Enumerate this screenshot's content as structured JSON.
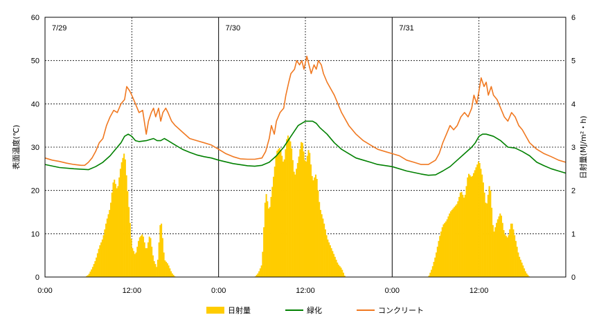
{
  "chart_data": {
    "type": "line",
    "title": "",
    "x_ticks": [
      "0:00",
      "12:00",
      "0:00",
      "12:00",
      "0:00",
      "12:00"
    ],
    "day_labels": [
      "7/29",
      "7/30",
      "7/31"
    ],
    "ylabel_left": "表面温度(℃)",
    "ylabel_right": "日射量(MJ/m²・h)",
    "ylim_left": [
      0,
      60
    ],
    "ylim_right": [
      0,
      6
    ],
    "yticks_left": [
      "0",
      "10",
      "20",
      "30",
      "40",
      "50",
      "60"
    ],
    "yticks_right": [
      "0",
      "1",
      "2",
      "3",
      "4",
      "5",
      "6"
    ],
    "grid": "dotted horizontal at every 10 ℃, dotted vertical at 12:00, solid vertical at 0:00",
    "legend_position": "bottom",
    "x_unit": "hours from 7/29 0:00",
    "colors": {
      "solar": "#FFCC00",
      "greening": "#008000",
      "concrete": "#F07820"
    },
    "series": [
      {
        "name": "日射量",
        "kind": "bar",
        "axis": "right",
        "points": [
          [
            0,
            0
          ],
          [
            5.5,
            0
          ],
          [
            6,
            0.05
          ],
          [
            6.5,
            0.2
          ],
          [
            7,
            0.4
          ],
          [
            7.5,
            0.7
          ],
          [
            8,
            0.9
          ],
          [
            8.5,
            1.3
          ],
          [
            9,
            1.6
          ],
          [
            9.5,
            2.3
          ],
          [
            10,
            2.0
          ],
          [
            10.5,
            2.6
          ],
          [
            11,
            2.9
          ],
          [
            11.5,
            1.8
          ],
          [
            12,
            0.7
          ],
          [
            12.5,
            0.5
          ],
          [
            13,
            0.9
          ],
          [
            13.5,
            1.0
          ],
          [
            14,
            0.6
          ],
          [
            14.5,
            1.0
          ],
          [
            15,
            0.4
          ],
          [
            15.5,
            0.2
          ],
          [
            16,
            1.4
          ],
          [
            16.5,
            0.4
          ],
          [
            17,
            0.3
          ],
          [
            17.5,
            0.1
          ],
          [
            18,
            0
          ],
          [
            24,
            0
          ],
          [
            29,
            0
          ],
          [
            29.5,
            0.1
          ],
          [
            30,
            0.3
          ],
          [
            30.5,
            2.0
          ],
          [
            31,
            1.5
          ],
          [
            31.5,
            2.2
          ],
          [
            32,
            2.9
          ],
          [
            32.5,
            3.0
          ],
          [
            33,
            2.6
          ],
          [
            33.5,
            3.3
          ],
          [
            34,
            3.1
          ],
          [
            34.5,
            2.3
          ],
          [
            35,
            2.7
          ],
          [
            35.5,
            3.2
          ],
          [
            36,
            2.6
          ],
          [
            36.5,
            3.0
          ],
          [
            37,
            2.2
          ],
          [
            37.5,
            2.4
          ],
          [
            38,
            1.6
          ],
          [
            38.5,
            1.3
          ],
          [
            39,
            0.9
          ],
          [
            39.5,
            0.7
          ],
          [
            40,
            0.5
          ],
          [
            40.5,
            0.3
          ],
          [
            41,
            0.2
          ],
          [
            41.5,
            0
          ],
          [
            48,
            0
          ],
          [
            53,
            0
          ],
          [
            53.5,
            0.2
          ],
          [
            54,
            0.5
          ],
          [
            54.5,
            0.9
          ],
          [
            55,
            1.2
          ],
          [
            55.5,
            1.3
          ],
          [
            56,
            1.5
          ],
          [
            56.5,
            1.6
          ],
          [
            57,
            1.7
          ],
          [
            57.5,
            2.0
          ],
          [
            58,
            1.8
          ],
          [
            58.5,
            2.4
          ],
          [
            59,
            2.3
          ],
          [
            59.5,
            2.5
          ],
          [
            60,
            2.7
          ],
          [
            60.5,
            2.3
          ],
          [
            61,
            1.6
          ],
          [
            61.5,
            2.2
          ],
          [
            62,
            1.0
          ],
          [
            62.5,
            1.3
          ],
          [
            63,
            1.5
          ],
          [
            63.5,
            1.0
          ],
          [
            64,
            0.9
          ],
          [
            64.5,
            1.3
          ],
          [
            65,
            0.9
          ],
          [
            65.5,
            0.5
          ],
          [
            66,
            0.3
          ],
          [
            66.5,
            0.1
          ],
          [
            67,
            0
          ],
          [
            72,
            0
          ]
        ]
      },
      {
        "name": "緑化",
        "kind": "line",
        "axis": "left",
        "points": [
          [
            0,
            26
          ],
          [
            2,
            25.3
          ],
          [
            4,
            25
          ],
          [
            6,
            24.8
          ],
          [
            7,
            25.5
          ],
          [
            8,
            26.5
          ],
          [
            9,
            28
          ],
          [
            10,
            30
          ],
          [
            10.5,
            31
          ],
          [
            11,
            32.5
          ],
          [
            11.5,
            33
          ],
          [
            12,
            32.5
          ],
          [
            12.5,
            31.5
          ],
          [
            13,
            31.3
          ],
          [
            14,
            31.5
          ],
          [
            15,
            32
          ],
          [
            15.5,
            31.5
          ],
          [
            16,
            31.5
          ],
          [
            16.5,
            32
          ],
          [
            17,
            31.5
          ],
          [
            18,
            30.5
          ],
          [
            19,
            29.5
          ],
          [
            20,
            28.8
          ],
          [
            21,
            28.2
          ],
          [
            22,
            27.8
          ],
          [
            23,
            27.5
          ],
          [
            24,
            27
          ],
          [
            26,
            26.2
          ],
          [
            28,
            25.7
          ],
          [
            29,
            25.6
          ],
          [
            30,
            25.8
          ],
          [
            31,
            26.5
          ],
          [
            32,
            28
          ],
          [
            33,
            30
          ],
          [
            34,
            32.5
          ],
          [
            35,
            35
          ],
          [
            36,
            36
          ],
          [
            36.5,
            36
          ],
          [
            37,
            36
          ],
          [
            37.5,
            35.5
          ],
          [
            38,
            34.5
          ],
          [
            39,
            33
          ],
          [
            40,
            31
          ],
          [
            41,
            29.5
          ],
          [
            42,
            28.5
          ],
          [
            43,
            27.5
          ],
          [
            44,
            27
          ],
          [
            45,
            26.5
          ],
          [
            46,
            26
          ],
          [
            48,
            25.5
          ],
          [
            50,
            24.5
          ],
          [
            52,
            23.8
          ],
          [
            53,
            23.5
          ],
          [
            54,
            23.6
          ],
          [
            55,
            24.5
          ],
          [
            56,
            25.5
          ],
          [
            57,
            27
          ],
          [
            58,
            28.5
          ],
          [
            59,
            30
          ],
          [
            59.5,
            31
          ],
          [
            60,
            32.5
          ],
          [
            60.5,
            33
          ],
          [
            61,
            33
          ],
          [
            62,
            32.5
          ],
          [
            63,
            31.5
          ],
          [
            64,
            30
          ],
          [
            65,
            29.8
          ],
          [
            66,
            29
          ],
          [
            67,
            28
          ],
          [
            68,
            26.5
          ],
          [
            69,
            25.7
          ],
          [
            70,
            25
          ],
          [
            71,
            24.5
          ],
          [
            72,
            24
          ]
        ]
      },
      {
        "name": "コンクリート",
        "kind": "line",
        "axis": "left",
        "points": [
          [
            0,
            27.5
          ],
          [
            1,
            27
          ],
          [
            2,
            26.7
          ],
          [
            3,
            26.3
          ],
          [
            4,
            26
          ],
          [
            5,
            25.8
          ],
          [
            5.5,
            25.8
          ],
          [
            6,
            26.5
          ],
          [
            6.5,
            27.5
          ],
          [
            7,
            29
          ],
          [
            7.5,
            31
          ],
          [
            8,
            32
          ],
          [
            8.5,
            35
          ],
          [
            9,
            37
          ],
          [
            9.5,
            38.5
          ],
          [
            10,
            38
          ],
          [
            10.5,
            40
          ],
          [
            11,
            41
          ],
          [
            11.3,
            44
          ],
          [
            11.7,
            43
          ],
          [
            12,
            42
          ],
          [
            12.5,
            40
          ],
          [
            13,
            38
          ],
          [
            13.5,
            38.5
          ],
          [
            14,
            33
          ],
          [
            14.3,
            36
          ],
          [
            14.7,
            38
          ],
          [
            15,
            39
          ],
          [
            15.3,
            37
          ],
          [
            15.7,
            39
          ],
          [
            16,
            36
          ],
          [
            16.3,
            38
          ],
          [
            16.7,
            39
          ],
          [
            17,
            38
          ],
          [
            17.5,
            36
          ],
          [
            18,
            35
          ],
          [
            19,
            33.5
          ],
          [
            20,
            32
          ],
          [
            21,
            31.5
          ],
          [
            22,
            31
          ],
          [
            23,
            30.5
          ],
          [
            24,
            29.5
          ],
          [
            25,
            28.5
          ],
          [
            26,
            27.8
          ],
          [
            27,
            27.3
          ],
          [
            28,
            27.2
          ],
          [
            29,
            27.2
          ],
          [
            30,
            27.5
          ],
          [
            30.5,
            29
          ],
          [
            31,
            32
          ],
          [
            31.3,
            35
          ],
          [
            31.7,
            33
          ],
          [
            32,
            36
          ],
          [
            32.5,
            38
          ],
          [
            33,
            39
          ],
          [
            33.3,
            42
          ],
          [
            33.7,
            45
          ],
          [
            34,
            47
          ],
          [
            34.5,
            48
          ],
          [
            34.8,
            50
          ],
          [
            35.2,
            49
          ],
          [
            35.5,
            50
          ],
          [
            35.8,
            48
          ],
          [
            36.2,
            51
          ],
          [
            36.5,
            49
          ],
          [
            36.8,
            47
          ],
          [
            37.2,
            49
          ],
          [
            37.5,
            48
          ],
          [
            37.8,
            50
          ],
          [
            38.2,
            49
          ],
          [
            38.5,
            47
          ],
          [
            39,
            45
          ],
          [
            40,
            42
          ],
          [
            41,
            38
          ],
          [
            42,
            35
          ],
          [
            43,
            33
          ],
          [
            44,
            31.5
          ],
          [
            45,
            30.5
          ],
          [
            46,
            29.5
          ],
          [
            47,
            29
          ],
          [
            48,
            28.5
          ],
          [
            49,
            28
          ],
          [
            50,
            27
          ],
          [
            51,
            26.5
          ],
          [
            52,
            26
          ],
          [
            53,
            26
          ],
          [
            53.5,
            26.5
          ],
          [
            54,
            27
          ],
          [
            54.5,
            28.5
          ],
          [
            55,
            31
          ],
          [
            55.5,
            33
          ],
          [
            56,
            35
          ],
          [
            56.5,
            34
          ],
          [
            57,
            35
          ],
          [
            57.5,
            37
          ],
          [
            58,
            38
          ],
          [
            58.5,
            37
          ],
          [
            59,
            39
          ],
          [
            59.3,
            42
          ],
          [
            59.7,
            40
          ],
          [
            60,
            43
          ],
          [
            60.3,
            46
          ],
          [
            60.7,
            44
          ],
          [
            61,
            45
          ],
          [
            61.3,
            42
          ],
          [
            61.7,
            44
          ],
          [
            62,
            42
          ],
          [
            62.5,
            41
          ],
          [
            63,
            39
          ],
          [
            63.5,
            37
          ],
          [
            64,
            36
          ],
          [
            64.5,
            38
          ],
          [
            65,
            37
          ],
          [
            65.5,
            35
          ],
          [
            66,
            34
          ],
          [
            67,
            31
          ],
          [
            68,
            29.5
          ],
          [
            69,
            28.5
          ],
          [
            70,
            27.8
          ],
          [
            71,
            27
          ],
          [
            72,
            26.5
          ]
        ]
      }
    ]
  }
}
